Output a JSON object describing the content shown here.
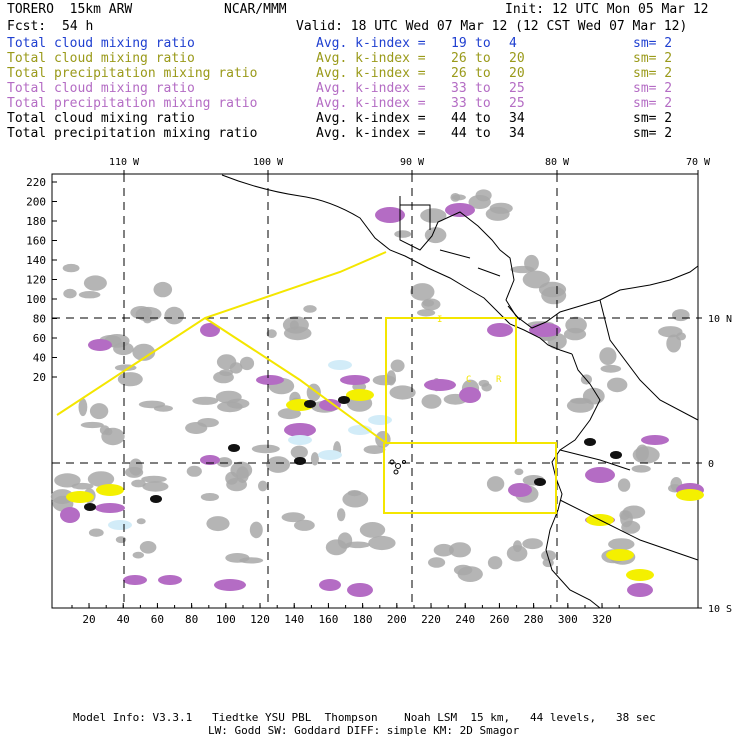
{
  "header": {
    "model": "TORERO  15km ARW",
    "org": "NCAR/MMM",
    "init": "Init: 12 UTC Mon 05 Mar 12",
    "fcst_label": "Fcst:",
    "fcst_value": "54 h",
    "valid": "Valid: 18 UTC Wed 07 Mar 12 (12 CST Wed 07 Mar 12)"
  },
  "legend": [
    {
      "field": "Total cloud mixing ratio",
      "avg": "Avg. k-index =",
      "from": "19",
      "to_word": "to",
      "to": "4",
      "sm": "sm= 2",
      "color": "#1f3fd0"
    },
    {
      "field": "Total cloud mixing ratio",
      "avg": "Avg. k-index =",
      "from": "26",
      "to_word": "to",
      "to": "20",
      "sm": "sm= 2",
      "color": "#9a9a1a"
    },
    {
      "field": "Total precipitation mixing ratio",
      "avg": "Avg. k-index =",
      "from": "26",
      "to_word": "to",
      "to": "20",
      "sm": "sm= 2",
      "color": "#9a9a1a"
    },
    {
      "field": "Total cloud mixing ratio",
      "avg": "Avg. k-index =",
      "from": "33",
      "to_word": "to",
      "to": "25",
      "sm": "sm= 2",
      "color": "#b46cc4"
    },
    {
      "field": "Total precipitation mixing ratio",
      "avg": "Avg. k-index =",
      "from": "33",
      "to_word": "to",
      "to": "25",
      "sm": "sm= 2",
      "color": "#b46cc4"
    },
    {
      "field": "Total cloud mixing ratio",
      "avg": "Avg. k-index =",
      "from": "44",
      "to_word": "to",
      "to": "34",
      "sm": "sm= 2",
      "color": "#000000"
    },
    {
      "field": "Total precipitation mixing ratio",
      "avg": "Avg. k-index =",
      "from": "44",
      "to_word": "to",
      "to": "34",
      "sm": "sm= 2",
      "color": "#000000"
    }
  ],
  "map": {
    "lon_labels": [
      "110 W",
      "100 W",
      "90 W",
      "80 W",
      "70 W"
    ],
    "lat_labels": [
      "10 N",
      "0",
      "10 S"
    ],
    "x_ticks": [
      "20",
      "40",
      "60",
      "80",
      "100",
      "120",
      "140",
      "160",
      "180",
      "200",
      "220",
      "240",
      "260",
      "280",
      "300",
      "320"
    ],
    "y_ticks": [
      "220",
      "200",
      "180",
      "160",
      "140",
      "120",
      "100",
      "80",
      "60",
      "40",
      "20"
    ],
    "domain_labels": [
      "I",
      "C",
      "R"
    ],
    "colors": {
      "gray": "#a8a8a8",
      "purple": "#b46cc4",
      "yellow": "#f4f000",
      "black": "#111111",
      "cyan": "#d2ecf8",
      "boundary": "#f4e600"
    }
  },
  "footer": {
    "line1": "Model Info: V3.3.1   Tiedtke YSU PBL  Thompson    Noah LSM  15 km,   44 levels,   38 sec",
    "line2": "LW: Godd SW: Goddard DIFF: simple KM: 2D Smagor"
  }
}
